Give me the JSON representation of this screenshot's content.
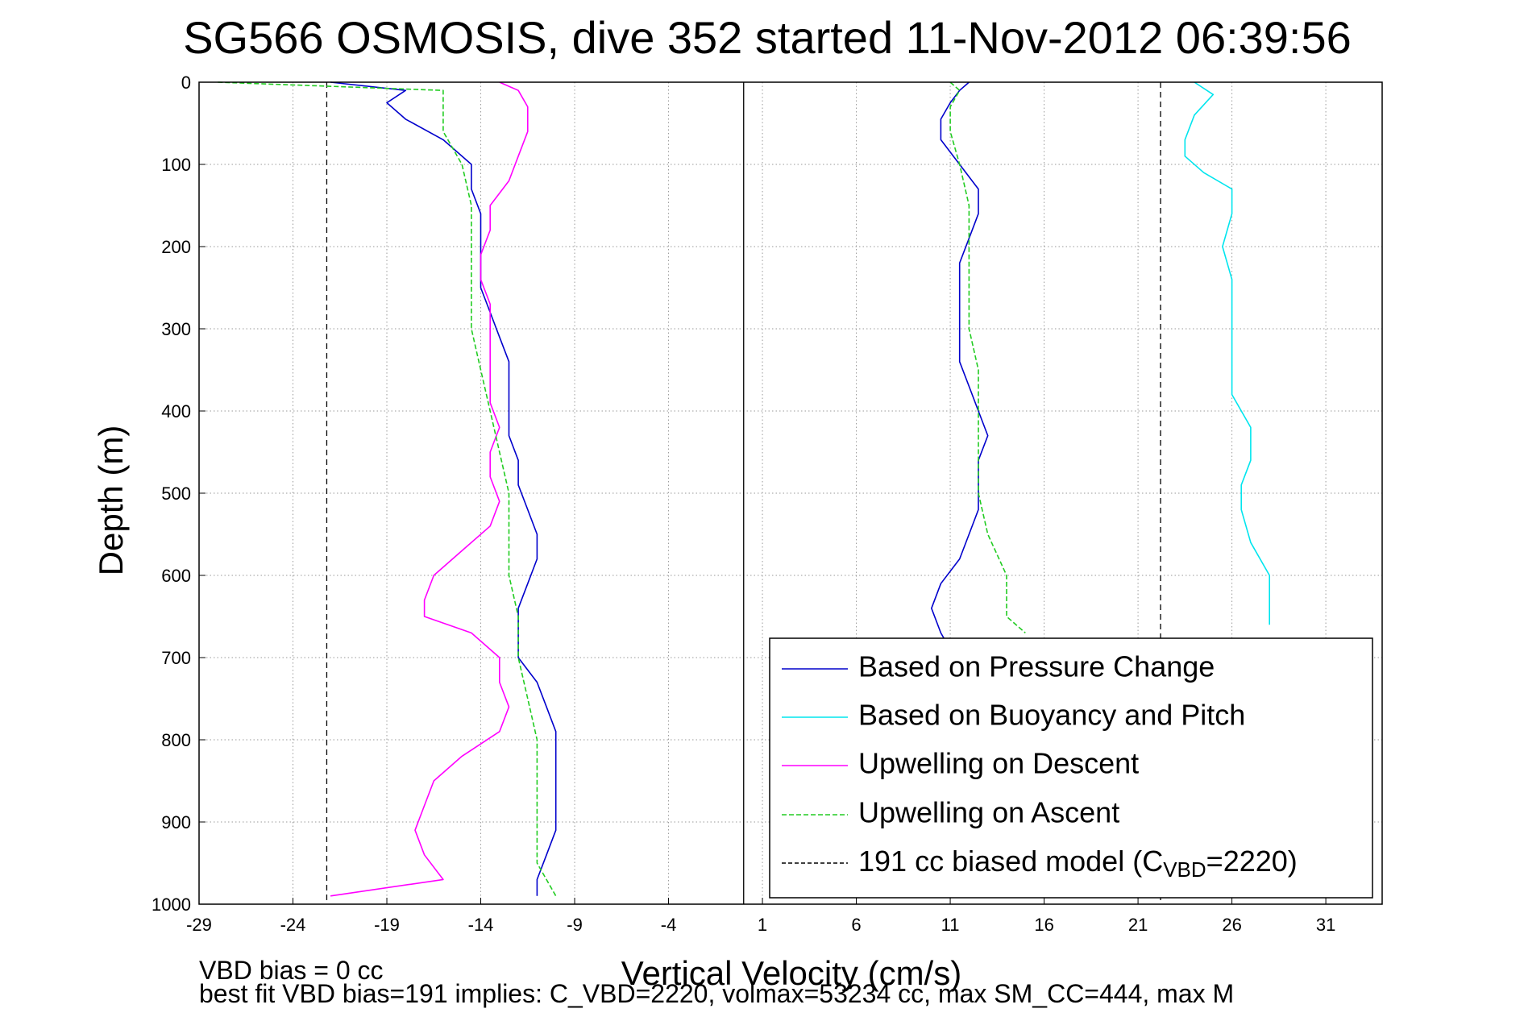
{
  "chart_data": {
    "type": "line",
    "title": "SG566 OSMOSIS, dive 352 started 11-Nov-2012 06:39:56",
    "xlabel": "Vertical Velocity (cm/s)",
    "ylabel": "Depth (m)",
    "xlim": [
      -29,
      34
    ],
    "ylim": [
      1000,
      0
    ],
    "y_reversed": true,
    "x_ticks": [
      -29,
      -24,
      -19,
      -14,
      -9,
      -4,
      1,
      6,
      11,
      16,
      21,
      26,
      31
    ],
    "y_ticks": [
      0,
      100,
      200,
      300,
      400,
      500,
      600,
      700,
      800,
      900,
      1000
    ],
    "grid": true,
    "legend_position": "bottom-right",
    "vertical_lines": [
      {
        "x": -22.2,
        "style": "dashed",
        "color": "#000000"
      },
      {
        "x": 0,
        "style": "solid",
        "color": "#000000"
      },
      {
        "x": 22.2,
        "style": "dashed",
        "color": "#000000"
      }
    ],
    "series": [
      {
        "name": "Based on Pressure Change",
        "color": "#0000cc",
        "style": "solid",
        "segments": [
          {
            "depth": [
              0,
              10,
              25,
              45,
              70,
              100,
              130,
              160,
              190,
              220,
              250,
              280,
              310,
              340,
              370,
              400,
              430,
              460,
              490,
              520,
              550,
              580,
              610,
              640,
              670,
              700,
              730,
              760,
              790,
              820,
              850,
              880,
              910,
              940,
              970,
              990
            ],
            "x": [
              -22,
              -18,
              -19,
              -18,
              -16,
              -14.5,
              -14.5,
              -14,
              -14,
              -14,
              -14,
              -13.5,
              -13,
              -12.5,
              -12.5,
              -12.5,
              -12.5,
              -12,
              -12,
              -11.5,
              -11,
              -11,
              -11.5,
              -12,
              -12,
              -12,
              -11,
              -10.5,
              -10,
              -10,
              -10,
              -10,
              -10,
              -10.5,
              -11,
              -11
            ]
          },
          {
            "depth": [
              0,
              10,
              25,
              45,
              70,
              100,
              130,
              160,
              190,
              220,
              250,
              280,
              310,
              340,
              370,
              400,
              430,
              460,
              490,
              520,
              550,
              580,
              610,
              640,
              670,
              690
            ],
            "x": [
              12,
              11.5,
              11,
              10.5,
              10.5,
              11.5,
              12.5,
              12.5,
              12,
              11.5,
              11.5,
              11.5,
              11.5,
              11.5,
              12,
              12.5,
              13,
              12.5,
              12.5,
              12.5,
              12,
              11.5,
              10.5,
              10,
              10.5,
              11
            ]
          }
        ]
      },
      {
        "name": "Based on Buoyancy and Pitch",
        "color": "#00e5ee",
        "style": "solid",
        "segments": [
          {
            "depth": [
              0,
              15,
              40,
              70,
              90,
              110,
              130,
              160,
              200,
              240,
              270,
              300,
              340,
              380,
              420,
              460,
              490,
              520,
              560,
              600,
              640,
              660
            ],
            "x": [
              24,
              25,
              24,
              23.5,
              23.5,
              24.5,
              26,
              26,
              25.5,
              26,
              26,
              26,
              26,
              26,
              27,
              27,
              26.5,
              26.5,
              27,
              28,
              28,
              28
            ]
          }
        ]
      },
      {
        "name": "Upwelling on Descent",
        "color": "#ff00ff",
        "style": "solid",
        "segments": [
          {
            "depth": [
              0,
              10,
              30,
              60,
              90,
              120,
              150,
              180,
              210,
              240,
              270,
              300,
              330,
              360,
              390,
              420,
              450,
              480,
              510,
              540,
              570,
              600,
              630,
              650,
              670,
              700,
              730,
              760,
              790,
              820,
              850,
              880,
              910,
              940,
              970,
              990
            ],
            "x": [
              -13,
              -12,
              -11.5,
              -11.5,
              -12,
              -12.5,
              -13.5,
              -13.5,
              -14,
              -14,
              -13.5,
              -13.5,
              -13.5,
              -13.5,
              -13.5,
              -13,
              -13.5,
              -13.5,
              -13,
              -13.5,
              -15,
              -16.5,
              -17,
              -17,
              -14.5,
              -13,
              -13,
              -12.5,
              -13,
              -15,
              -16.5,
              -17,
              -17.5,
              -17,
              -16,
              -22
            ]
          }
        ]
      },
      {
        "name": "Upwelling on Ascent",
        "color": "#22cc22",
        "style": "dashed",
        "segments": [
          {
            "depth": [
              0,
              10,
              30,
              60,
              100,
              150,
              200,
              250,
              300,
              350,
              400,
              450,
              500,
              550,
              600,
              650,
              700,
              750,
              800,
              850,
              900,
              950,
              990
            ],
            "x": [
              -28,
              -16,
              -16,
              -16,
              -15,
              -14.5,
              -14.5,
              -14.5,
              -14.5,
              -14,
              -13.5,
              -13,
              -12.5,
              -12.5,
              -12.5,
              -12,
              -12,
              -11.5,
              -11,
              -11,
              -11,
              -11,
              -10
            ]
          },
          {
            "depth": [
              0,
              10,
              30,
              60,
              100,
              150,
              200,
              250,
              300,
              350,
              400,
              450,
              500,
              550,
              600,
              650,
              670
            ],
            "x": [
              11,
              11.5,
              11,
              11,
              11.5,
              12,
              12,
              12,
              12,
              12.5,
              12.5,
              12.5,
              12.5,
              13,
              14,
              14,
              15
            ]
          }
        ]
      },
      {
        "name": "191 cc biased model (C_VBD=2220)",
        "color": "#000000",
        "style": "dashed",
        "segments": []
      }
    ],
    "legend": {
      "entries": [
        {
          "label": "Based on Pressure Change",
          "color": "#0000cc",
          "dash": false
        },
        {
          "label": "Based on Buoyancy and Pitch",
          "color": "#00e5ee",
          "dash": false
        },
        {
          "label": "Upwelling on Descent",
          "color": "#ff00ff",
          "dash": false
        },
        {
          "label": "Upwelling on Ascent",
          "color": "#22cc22",
          "dash": true
        }
      ],
      "model_entry": {
        "prefix": "191 cc biased model (C",
        "subscript": "VBD",
        "suffix": "=2220)"
      }
    },
    "notes": [
      "VBD bias = 0 cc",
      "best fit VBD bias=191 implies: C_VBD=2220, volmax=53234 cc, max SM_CC=444, max M"
    ]
  }
}
